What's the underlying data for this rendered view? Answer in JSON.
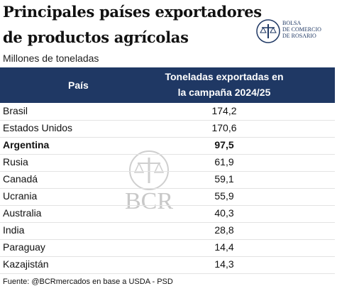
{
  "title_lines": [
    "Principales países exportadores",
    "de productos agrícolas"
  ],
  "subtitle": "Millones de toneladas",
  "logo": {
    "lines": [
      "BOLSA",
      "DE COMERCIO",
      "DE ROSARIO"
    ]
  },
  "watermark": "BCR",
  "table": {
    "header": [
      "País",
      [
        "Toneladas exportadas en",
        "la campaña 2024/25"
      ]
    ],
    "rows": [
      [
        "Brasil",
        "174,2"
      ],
      [
        "Estados Unidos",
        "170,6"
      ],
      [
        "Argentina",
        "97,5"
      ],
      [
        "Rusia",
        "61,9"
      ],
      [
        "Canadá",
        "59,1"
      ],
      [
        "Ucrania",
        "55,9"
      ],
      [
        "Australia",
        "40,3"
      ],
      [
        "India",
        "28,8"
      ],
      [
        "Paraguay",
        "14,4"
      ],
      [
        "Kazajistán",
        "14,3"
      ]
    ],
    "highlight_row": 2
  },
  "source": "Fuente: @BCRmercados en base a USDA - PSD"
}
